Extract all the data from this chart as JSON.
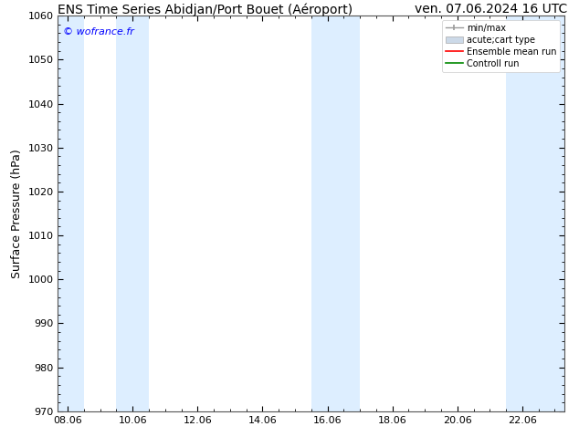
{
  "title_left": "ENS Time Series Abidjan/Port Bouet (Aéroport)",
  "title_right": "ven. 07.06.2024 16 UTC",
  "ylabel": "Surface Pressure (hPa)",
  "ylim": [
    970,
    1060
  ],
  "yticks": [
    970,
    980,
    990,
    1000,
    1010,
    1020,
    1030,
    1040,
    1050,
    1060
  ],
  "xtick_labels": [
    "08.06",
    "10.06",
    "12.06",
    "14.06",
    "16.06",
    "18.06",
    "20.06",
    "22.06"
  ],
  "xtick_positions": [
    0,
    2,
    4,
    6,
    8,
    10,
    12,
    14
  ],
  "xlim": [
    -0.3,
    15.3
  ],
  "watermark": "© wofrance.fr",
  "shaded_bands": [
    {
      "x_start": -0.3,
      "x_end": 0.5
    },
    {
      "x_start": 1.5,
      "x_end": 2.5
    },
    {
      "x_start": 7.5,
      "x_end": 9.0
    },
    {
      "x_start": 13.5,
      "x_end": 15.3
    }
  ],
  "band_color": "#ddeeff",
  "background_color": "#ffffff",
  "legend_items": [
    {
      "label": "min/max",
      "color": "#aaaaaa",
      "type": "errorbar"
    },
    {
      "label": "acute;cart type",
      "color": "#cccccc",
      "type": "bar"
    },
    {
      "label": "Ensemble mean run",
      "color": "#ff0000",
      "type": "line"
    },
    {
      "label": "Controll run",
      "color": "#00aa00",
      "type": "line"
    }
  ],
  "title_fontsize": 10,
  "tick_fontsize": 8,
  "ylabel_fontsize": 9,
  "legend_fontsize": 7
}
